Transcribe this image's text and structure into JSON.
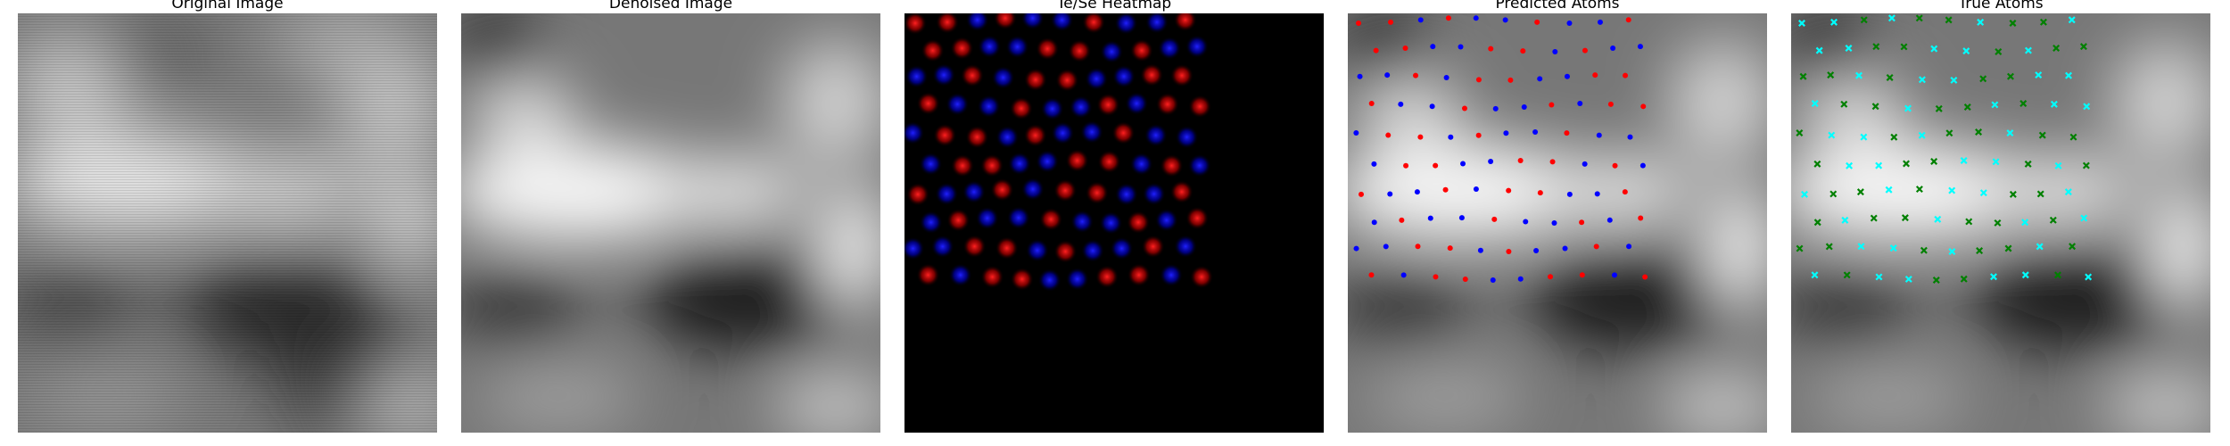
{
  "figure": {
    "panels": [
      {
        "title": "Original Image",
        "kind": "grayscale"
      },
      {
        "title": "Denoised Image",
        "kind": "grayscale"
      },
      {
        "title": "Te/Se Heatmap",
        "kind": "heatmap"
      },
      {
        "title": "Predicted Atoms",
        "kind": "atoms"
      },
      {
        "title": "True Atoms",
        "kind": "atoms"
      }
    ]
  },
  "colors": {
    "te_heat": "#ff1010",
    "se_heat": "#1414ff",
    "pred_te": "#ff0000",
    "pred_se": "#0000ff",
    "true_te": "#00ffff",
    "true_se": "#008000"
  },
  "markers": {
    "predicted": "filled-dot",
    "true": "x-cross"
  }
}
